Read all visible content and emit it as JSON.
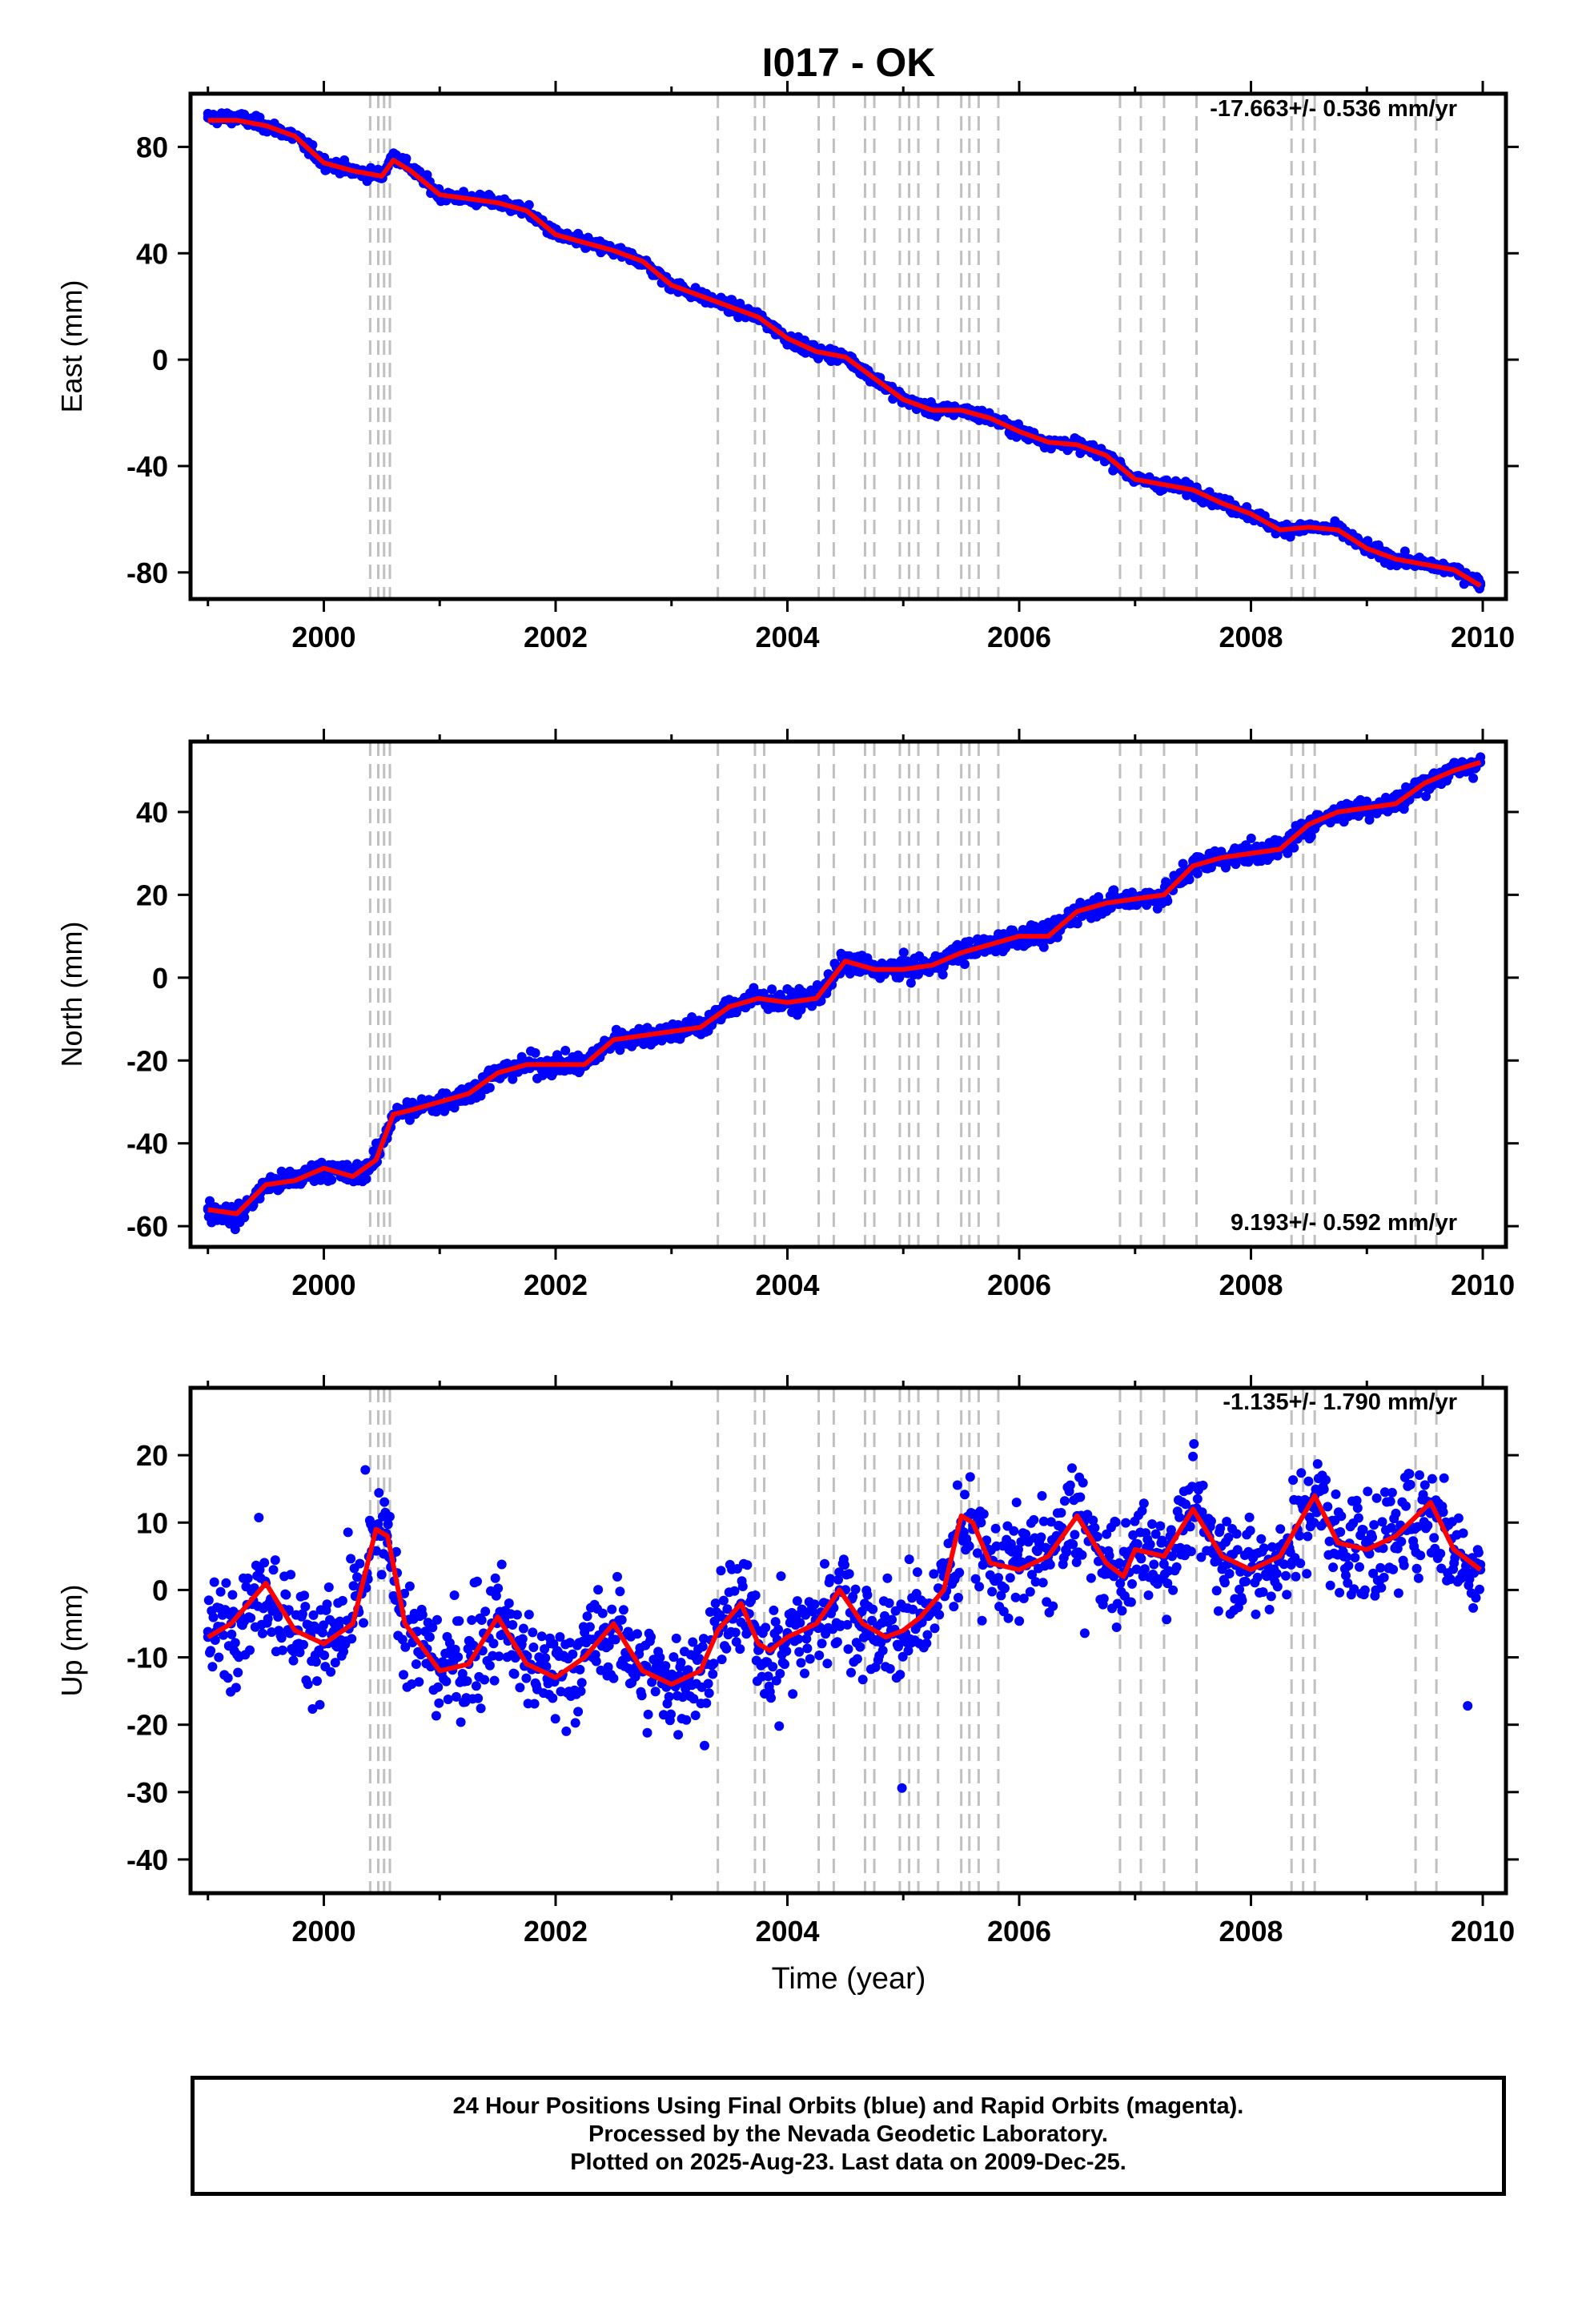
{
  "title": "I017 - OK",
  "xlabel": "Time (year)",
  "caption": {
    "line1": "24 Hour Positions Using Final Orbits (blue) and Rapid Orbits (magenta).",
    "line2": "Processed by the Nevada Geodetic Laboratory.",
    "line3": "Plotted on 2025-Aug-23. Last data on 2009-Dec-25."
  },
  "colors": {
    "data": "#0000ff",
    "model": "#ff0000",
    "events": "#c0c0c0",
    "axes": "#000000"
  },
  "x_ticks": [
    2000,
    2002,
    2004,
    2006,
    2008,
    2010
  ],
  "event_lines": [
    2000.4,
    2000.47,
    2000.52,
    2000.57,
    2003.4,
    2003.72,
    2003.8,
    2004.27,
    2004.4,
    2004.67,
    2004.75,
    2004.97,
    2005.05,
    2005.13,
    2005.3,
    2005.5,
    2005.57,
    2005.65,
    2005.82,
    2006.87,
    2007.05,
    2007.25,
    2007.53,
    2008.35,
    2008.45,
    2008.55,
    2009.42,
    2009.6
  ],
  "chart_data": [
    {
      "type": "scatter",
      "component": "east",
      "ylabel": "East (mm)",
      "rate_label": "-17.663+/- 0.536 mm/yr",
      "xlim": [
        1998.85,
        2010.2
      ],
      "ylim": [
        -90,
        100
      ],
      "y_ticks": [
        -80,
        -40,
        0,
        40,
        80
      ],
      "series": [
        {
          "role": "daily positions",
          "x": [
            1999.0,
            1999.25,
            1999.5,
            1999.75,
            2000.0,
            2000.25,
            2000.5,
            2000.6,
            2000.75,
            2001.0,
            2001.5,
            2001.75,
            2002.0,
            2002.5,
            2002.75,
            2003.0,
            2003.25,
            2003.5,
            2003.75,
            2004.0,
            2004.25,
            2004.5,
            2004.75,
            2005.0,
            2005.25,
            2005.5,
            2005.75,
            2006.0,
            2006.25,
            2006.5,
            2006.75,
            2007.0,
            2007.25,
            2007.5,
            2007.75,
            2008.0,
            2008.25,
            2008.5,
            2008.75,
            2009.0,
            2009.25,
            2009.5,
            2009.75,
            2009.98
          ],
          "y": [
            91,
            91,
            88,
            84,
            74,
            71,
            69,
            77,
            72,
            62,
            59,
            56,
            47,
            41,
            37,
            28,
            24,
            20,
            16,
            8,
            3,
            1,
            -7,
            -15,
            -19,
            -19,
            -22,
            -27,
            -31,
            -32,
            -36,
            -45,
            -47,
            -49,
            -54,
            -58,
            -64,
            -63,
            -64,
            -71,
            -75,
            -77,
            -79,
            -84
          ]
        },
        {
          "role": "model fit",
          "x": [
            1999.0,
            1999.25,
            1999.5,
            1999.75,
            2000.0,
            2000.25,
            2000.5,
            2000.6,
            2000.75,
            2001.0,
            2001.5,
            2001.75,
            2002.0,
            2002.5,
            2002.75,
            2003.0,
            2003.25,
            2003.5,
            2003.75,
            2004.0,
            2004.25,
            2004.5,
            2004.75,
            2005.0,
            2005.25,
            2005.5,
            2005.75,
            2006.0,
            2006.25,
            2006.5,
            2006.75,
            2007.0,
            2007.25,
            2007.5,
            2007.75,
            2008.0,
            2008.25,
            2008.5,
            2008.75,
            2009.0,
            2009.25,
            2009.5,
            2009.75,
            2009.98
          ],
          "y": [
            90,
            90,
            88,
            84,
            74,
            71,
            69,
            75,
            71,
            62,
            59,
            56,
            47,
            41,
            37,
            28,
            24,
            20,
            16,
            8,
            3,
            1,
            -7,
            -15,
            -19,
            -19,
            -22,
            -27,
            -31,
            -32,
            -36,
            -45,
            -47,
            -49,
            -54,
            -58,
            -64,
            -63,
            -64,
            -71,
            -75,
            -77,
            -79,
            -85
          ]
        }
      ]
    },
    {
      "type": "scatter",
      "component": "north",
      "ylabel": "North (mm)",
      "rate_label": "9.193+/- 0.592 mm/yr",
      "xlim": [
        1998.85,
        2010.2
      ],
      "ylim": [
        -65,
        57
      ],
      "y_ticks": [
        -60,
        -40,
        -20,
        0,
        20,
        40
      ],
      "series": [
        {
          "role": "daily positions",
          "x": [
            1999.0,
            1999.25,
            1999.5,
            1999.75,
            2000.0,
            2000.25,
            2000.45,
            2000.6,
            2000.75,
            2001.0,
            2001.25,
            2001.5,
            2001.75,
            2002.0,
            2002.25,
            2002.5,
            2002.75,
            2003.0,
            2003.25,
            2003.5,
            2003.75,
            2004.0,
            2004.25,
            2004.5,
            2004.75,
            2005.0,
            2005.25,
            2005.5,
            2005.75,
            2006.0,
            2006.25,
            2006.5,
            2006.75,
            2007.0,
            2007.25,
            2007.5,
            2007.75,
            2008.0,
            2008.25,
            2008.5,
            2008.75,
            2009.0,
            2009.25,
            2009.5,
            2009.75,
            2009.98
          ],
          "y": [
            -56,
            -58,
            -50,
            -49,
            -46,
            -48,
            -44,
            -33,
            -32,
            -30,
            -28,
            -23,
            -21,
            -21,
            -21,
            -15,
            -14,
            -13,
            -12,
            -7,
            -5,
            -6,
            -5,
            4,
            2,
            2,
            3,
            6,
            8,
            10,
            10,
            16,
            18,
            19,
            20,
            27,
            29,
            30,
            31,
            37,
            40,
            41,
            42,
            47,
            50,
            52
          ]
        },
        {
          "role": "model fit",
          "x": [
            1999.0,
            1999.25,
            1999.5,
            1999.75,
            2000.0,
            2000.25,
            2000.45,
            2000.6,
            2000.75,
            2001.0,
            2001.25,
            2001.5,
            2001.75,
            2002.0,
            2002.25,
            2002.5,
            2002.75,
            2003.0,
            2003.25,
            2003.5,
            2003.75,
            2004.0,
            2004.25,
            2004.5,
            2004.75,
            2005.0,
            2005.25,
            2005.5,
            2005.75,
            2006.0,
            2006.25,
            2006.5,
            2006.75,
            2007.0,
            2007.25,
            2007.5,
            2007.75,
            2008.0,
            2008.25,
            2008.5,
            2008.75,
            2009.0,
            2009.25,
            2009.5,
            2009.75,
            2009.98
          ],
          "y": [
            -56,
            -57,
            -50,
            -49,
            -46,
            -48,
            -44,
            -33,
            -32,
            -30,
            -28,
            -23,
            -21,
            -21,
            -21,
            -15,
            -14,
            -13,
            -12,
            -7,
            -5,
            -6,
            -5,
            4,
            2,
            2,
            3,
            6,
            8,
            10,
            10,
            16,
            18,
            19,
            20,
            27,
            29,
            30,
            31,
            37,
            40,
            41,
            42,
            47,
            50,
            52
          ]
        }
      ]
    },
    {
      "type": "scatter",
      "component": "up",
      "ylabel": "Up (mm)",
      "rate_label": "-1.135+/- 1.790 mm/yr",
      "xlim": [
        1998.85,
        2010.2
      ],
      "ylim": [
        -45,
        30
      ],
      "y_ticks": [
        -40,
        -30,
        -20,
        -10,
        0,
        10,
        20
      ],
      "series": [
        {
          "role": "daily positions",
          "x": [
            1999.0,
            1999.2,
            1999.5,
            1999.75,
            2000.0,
            2000.25,
            2000.45,
            2000.55,
            2000.7,
            2001.0,
            2001.25,
            2001.5,
            2001.75,
            2002.0,
            2002.25,
            2002.5,
            2002.75,
            2003.0,
            2003.25,
            2003.4,
            2003.6,
            2003.75,
            2003.85,
            2004.0,
            2004.25,
            2004.45,
            2004.65,
            2004.85,
            2005.0,
            2005.15,
            2005.35,
            2005.5,
            2005.6,
            2005.75,
            2006.0,
            2006.25,
            2006.5,
            2006.75,
            2006.9,
            2007.0,
            2007.25,
            2007.5,
            2007.75,
            2008.0,
            2008.25,
            2008.55,
            2008.75,
            2009.0,
            2009.25,
            2009.55,
            2009.75,
            2009.98
          ],
          "y": [
            -7,
            -5,
            1,
            -6,
            -8,
            -5,
            8,
            7,
            -5,
            -12,
            -11,
            -4,
            -11,
            -13,
            -10,
            -5,
            -12,
            -14,
            -12,
            -6,
            -2,
            -8,
            -9,
            -7,
            -5,
            0,
            -5,
            -7,
            -7,
            -4,
            0,
            10,
            9,
            4,
            3,
            5,
            11,
            4,
            2,
            6,
            5,
            12,
            5,
            3,
            5,
            14,
            7,
            6,
            8,
            13,
            6,
            3
          ]
        },
        {
          "role": "model fit",
          "x": [
            1999.0,
            1999.2,
            1999.5,
            1999.75,
            2000.0,
            2000.25,
            2000.45,
            2000.55,
            2000.7,
            2001.0,
            2001.25,
            2001.5,
            2001.75,
            2002.0,
            2002.25,
            2002.5,
            2002.75,
            2003.0,
            2003.25,
            2003.4,
            2003.6,
            2003.75,
            2003.85,
            2004.0,
            2004.25,
            2004.45,
            2004.65,
            2004.85,
            2005.0,
            2005.15,
            2005.35,
            2005.5,
            2005.6,
            2005.75,
            2006.0,
            2006.25,
            2006.5,
            2006.75,
            2006.9,
            2007.0,
            2007.25,
            2007.5,
            2007.75,
            2008.0,
            2008.25,
            2008.55,
            2008.75,
            2009.0,
            2009.25,
            2009.55,
            2009.75,
            2009.98
          ],
          "y": [
            -7,
            -5,
            1,
            -6,
            -8,
            -5,
            9,
            8,
            -5,
            -12,
            -11,
            -4,
            -11,
            -13,
            -10,
            -5,
            -12,
            -14,
            -12,
            -6,
            -2,
            -8,
            -9,
            -7,
            -5,
            0,
            -5,
            -7,
            -6,
            -4,
            0,
            11,
            10,
            4,
            3,
            5,
            11,
            4,
            2,
            6,
            5,
            12,
            5,
            3,
            5,
            14,
            7,
            6,
            8,
            13,
            6,
            3
          ]
        }
      ]
    }
  ]
}
